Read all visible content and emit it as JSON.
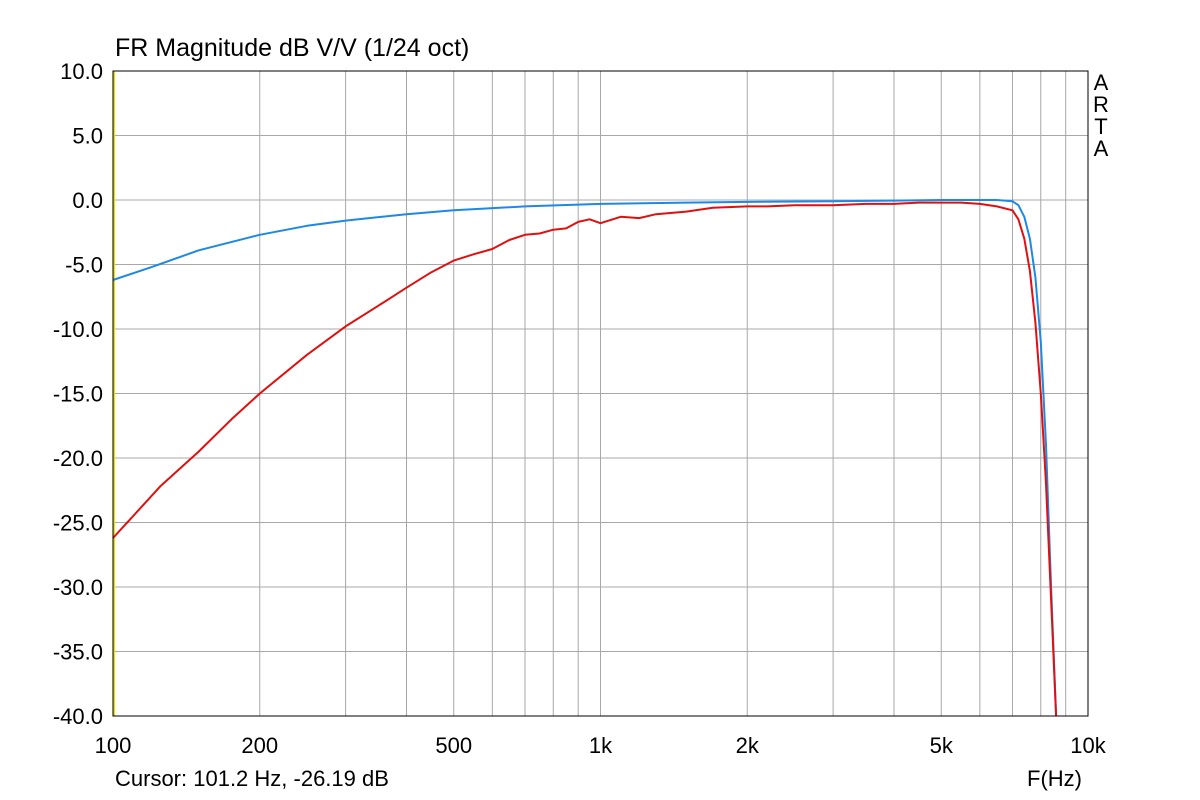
{
  "chart_data": {
    "type": "line",
    "title": "FR Magnitude dB V/V (1/24 oct)",
    "brand": "ARTA",
    "cursor_text": "Cursor: 101.2 Hz, -26.19 dB",
    "xlabel": "F(Hz)",
    "ylabel": "",
    "x_scale": "log",
    "xlim": [
      100,
      10000
    ],
    "ylim": [
      -40,
      10
    ],
    "grid": true,
    "x_ticks": [
      100,
      200,
      500,
      1000,
      2000,
      5000,
      10000
    ],
    "x_tick_labels": [
      "100",
      "200",
      "500",
      "1k",
      "2k",
      "5k",
      "10k"
    ],
    "y_ticks": [
      10,
      5,
      0,
      -5,
      -10,
      -15,
      -20,
      -25,
      -30,
      -35,
      -40
    ],
    "y_tick_labels": [
      "10.0",
      "5.0",
      "0.0",
      "-5.0",
      "-10.0",
      "-15.0",
      "-20.0",
      "-25.0",
      "-30.0",
      "-35.0",
      "-40.0"
    ],
    "series": [
      {
        "color": "#1e88e5",
        "x": [
          100,
          120,
          150,
          200,
          250,
          300,
          400,
          500,
          700,
          1000,
          1500,
          2000,
          3000,
          4000,
          5000,
          6000,
          6500,
          7000,
          7200,
          7400,
          7600,
          7800,
          8000,
          8200,
          8400,
          8600
        ],
        "y": [
          -6.2,
          -5.2,
          -3.9,
          -2.7,
          -2.0,
          -1.6,
          -1.1,
          -0.8,
          -0.5,
          -0.3,
          -0.2,
          -0.15,
          -0.1,
          -0.05,
          0.0,
          0.0,
          0.0,
          -0.1,
          -0.4,
          -1.3,
          -3.0,
          -6.0,
          -11.0,
          -19.0,
          -30.0,
          -40.0
        ]
      },
      {
        "color": "#e01010",
        "x": [
          100,
          110,
          125,
          150,
          175,
          200,
          250,
          300,
          350,
          400,
          450,
          500,
          550,
          600,
          650,
          700,
          750,
          800,
          850,
          900,
          950,
          1000,
          1100,
          1200,
          1300,
          1500,
          1700,
          2000,
          2200,
          2500,
          3000,
          3500,
          4000,
          4500,
          5000,
          5500,
          6000,
          6500,
          7000,
          7200,
          7400,
          7600,
          7800,
          8000,
          8200,
          8400,
          8600
        ],
        "y": [
          -26.2,
          -24.5,
          -22.2,
          -19.5,
          -17.0,
          -15.0,
          -12.0,
          -9.8,
          -8.2,
          -6.8,
          -5.6,
          -4.7,
          -4.2,
          -3.8,
          -3.1,
          -2.7,
          -2.6,
          -2.3,
          -2.2,
          -1.7,
          -1.5,
          -1.8,
          -1.3,
          -1.4,
          -1.1,
          -0.9,
          -0.6,
          -0.5,
          -0.5,
          -0.4,
          -0.4,
          -0.3,
          -0.3,
          -0.2,
          -0.2,
          -0.2,
          -0.3,
          -0.5,
          -0.8,
          -1.5,
          -3.0,
          -5.5,
          -9.5,
          -15.0,
          -22.0,
          -31.0,
          -40.0
        ]
      }
    ]
  }
}
